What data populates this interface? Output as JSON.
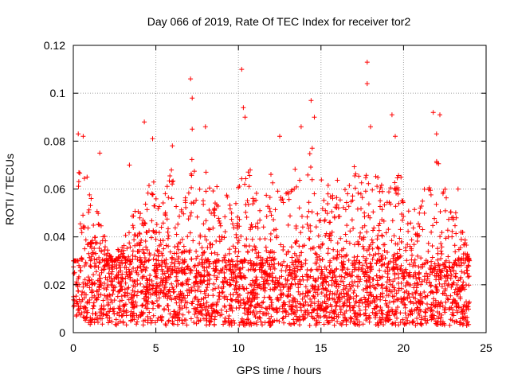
{
  "chart_data": {
    "type": "scatter",
    "title": "Day 066 of 2019, Rate Of TEC Index for receiver tor2",
    "xlabel": "GPS time / hours",
    "ylabel": "ROTI / TECUs",
    "xlim": [
      0,
      25
    ],
    "ylim": [
      0,
      0.12
    ],
    "xticks": [
      0,
      5,
      10,
      15,
      20,
      25
    ],
    "xtick_labels": [
      "0",
      "5",
      "10",
      "15",
      "20",
      "25"
    ],
    "yticks": [
      0,
      0.02,
      0.04,
      0.06,
      0.08,
      0.1,
      0.12
    ],
    "ytick_labels": [
      "0",
      "0.02",
      "0.04",
      "0.06",
      "0.08",
      "0.1",
      "0.12"
    ],
    "grid": true,
    "marker": "+",
    "color": "#ff0000",
    "series": [
      {
        "name": "ROTI",
        "x_range": [
          0,
          24
        ],
        "baseline_range": [
          0.003,
          0.03
        ],
        "notable_points": [
          {
            "x": 0.3,
            "y": 0.083
          },
          {
            "x": 0.6,
            "y": 0.082
          },
          {
            "x": 1.6,
            "y": 0.075
          },
          {
            "x": 3.4,
            "y": 0.07
          },
          {
            "x": 4.3,
            "y": 0.088
          },
          {
            "x": 4.8,
            "y": 0.081
          },
          {
            "x": 6.0,
            "y": 0.078
          },
          {
            "x": 7.1,
            "y": 0.106
          },
          {
            "x": 7.2,
            "y": 0.098
          },
          {
            "x": 7.2,
            "y": 0.085
          },
          {
            "x": 8.0,
            "y": 0.086
          },
          {
            "x": 10.2,
            "y": 0.11
          },
          {
            "x": 10.3,
            "y": 0.094
          },
          {
            "x": 10.4,
            "y": 0.09
          },
          {
            "x": 12.5,
            "y": 0.082
          },
          {
            "x": 13.8,
            "y": 0.086
          },
          {
            "x": 14.4,
            "y": 0.097
          },
          {
            "x": 14.6,
            "y": 0.09
          },
          {
            "x": 17.8,
            "y": 0.113
          },
          {
            "x": 17.8,
            "y": 0.104
          },
          {
            "x": 18.0,
            "y": 0.086
          },
          {
            "x": 19.3,
            "y": 0.091
          },
          {
            "x": 19.5,
            "y": 0.082
          },
          {
            "x": 21.8,
            "y": 0.092
          },
          {
            "x": 22.2,
            "y": 0.091
          },
          {
            "x": 22.0,
            "y": 0.083
          },
          {
            "x": 23.3,
            "y": 0.06
          }
        ],
        "envelope_peaks": [
          {
            "x": 0.3,
            "y": 0.075
          },
          {
            "x": 0.8,
            "y": 0.066
          },
          {
            "x": 1.2,
            "y": 0.055
          },
          {
            "x": 1.8,
            "y": 0.045
          },
          {
            "x": 2.4,
            "y": 0.03
          },
          {
            "x": 3.0,
            "y": 0.04
          },
          {
            "x": 3.5,
            "y": 0.05
          },
          {
            "x": 4.2,
            "y": 0.06
          },
          {
            "x": 4.8,
            "y": 0.065
          },
          {
            "x": 5.4,
            "y": 0.055
          },
          {
            "x": 6.0,
            "y": 0.07
          },
          {
            "x": 6.6,
            "y": 0.05
          },
          {
            "x": 7.2,
            "y": 0.075
          },
          {
            "x": 7.8,
            "y": 0.07
          },
          {
            "x": 8.5,
            "y": 0.065
          },
          {
            "x": 9.2,
            "y": 0.06
          },
          {
            "x": 9.8,
            "y": 0.055
          },
          {
            "x": 10.4,
            "y": 0.075
          },
          {
            "x": 11.0,
            "y": 0.065
          },
          {
            "x": 11.6,
            "y": 0.06
          },
          {
            "x": 12.2,
            "y": 0.07
          },
          {
            "x": 12.8,
            "y": 0.06
          },
          {
            "x": 13.4,
            "y": 0.07
          },
          {
            "x": 14.0,
            "y": 0.075
          },
          {
            "x": 14.6,
            "y": 0.078
          },
          {
            "x": 15.2,
            "y": 0.065
          },
          {
            "x": 15.8,
            "y": 0.07
          },
          {
            "x": 16.4,
            "y": 0.068
          },
          {
            "x": 17.0,
            "y": 0.07
          },
          {
            "x": 17.6,
            "y": 0.065
          },
          {
            "x": 18.2,
            "y": 0.07
          },
          {
            "x": 18.8,
            "y": 0.06
          },
          {
            "x": 19.4,
            "y": 0.08
          },
          {
            "x": 20.0,
            "y": 0.06
          },
          {
            "x": 20.6,
            "y": 0.055
          },
          {
            "x": 21.2,
            "y": 0.06
          },
          {
            "x": 21.8,
            "y": 0.082
          },
          {
            "x": 22.4,
            "y": 0.065
          },
          {
            "x": 23.0,
            "y": 0.055
          },
          {
            "x": 23.6,
            "y": 0.045
          },
          {
            "x": 24.0,
            "y": 0.03
          }
        ]
      }
    ]
  }
}
